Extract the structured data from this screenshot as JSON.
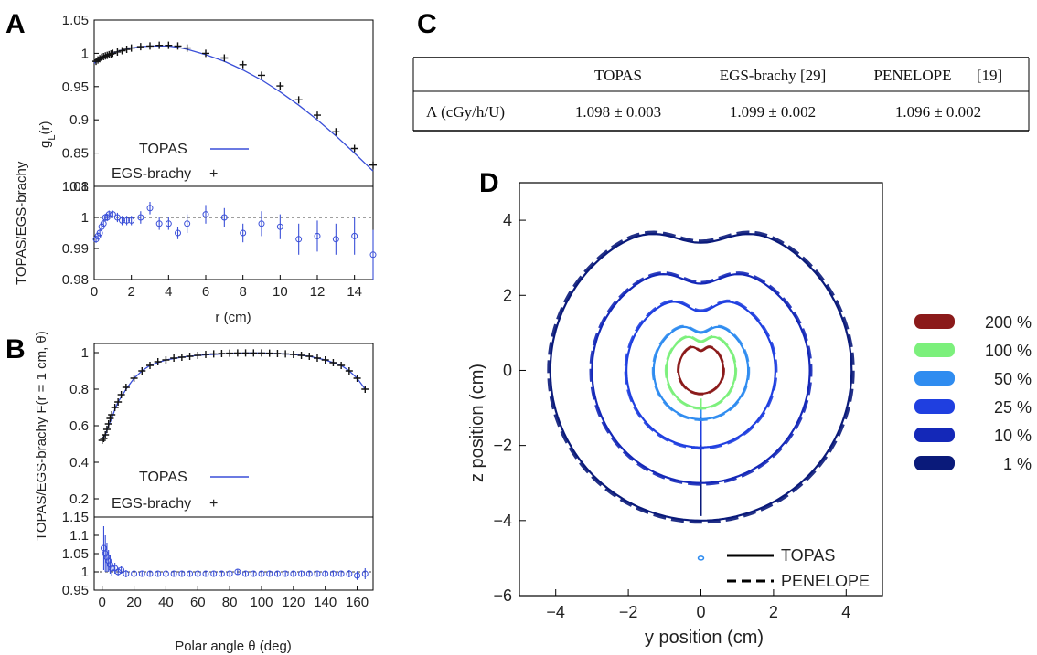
{
  "panels": {
    "A": "A",
    "B": "B",
    "C": "C",
    "D": "D"
  },
  "legend_common": {
    "topas": "TOPAS",
    "egs": "EGS-brachy",
    "penelope": "PENELOPE"
  },
  "table": {
    "headers": [
      "",
      "TOPAS",
      "EGS-brachy [29]",
      "PENELOPE",
      "[19]"
    ],
    "row_label": "Λ (cGy/h/U)",
    "values": [
      "1.098 ± 0.003",
      "1.099 ± 0.002",
      "1.096 ± 0.002"
    ]
  },
  "chart_data": [
    {
      "id": "A-top",
      "type": "line",
      "xlabel": "",
      "ylabel": "gL(r)",
      "ylabel_main": "g",
      "ylabel_sub": "L",
      "ylabel_tail": "(r)",
      "xlim": [
        0,
        15
      ],
      "ylim": [
        0.8,
        1.05
      ],
      "yticks": [
        "1.05",
        "1",
        "0.95",
        "0.9",
        "0.85",
        "0.8"
      ],
      "series": [
        {
          "name": "TOPAS",
          "kind": "line",
          "color": "#3a4fd8",
          "x": [
            0,
            0.25,
            0.5,
            0.75,
            1,
            1.5,
            2,
            2.5,
            3,
            3.5,
            4,
            4.5,
            5,
            6,
            7,
            8,
            9,
            10,
            11,
            12,
            13,
            14,
            15
          ],
          "values": [
            0.985,
            0.99,
            0.995,
            0.998,
            1.0,
            1.005,
            1.008,
            1.01,
            1.011,
            1.011,
            1.011,
            1.009,
            1.006,
            0.998,
            0.988,
            0.975,
            0.96,
            0.942,
            0.922,
            0.9,
            0.876,
            0.85,
            0.823
          ]
        },
        {
          "name": "EGS-brachy",
          "kind": "marker",
          "color": "#111111",
          "x": [
            0.1,
            0.2,
            0.3,
            0.4,
            0.5,
            0.6,
            0.7,
            0.8,
            0.9,
            1,
            1.25,
            1.5,
            1.75,
            2,
            2.5,
            3,
            3.5,
            4,
            4.5,
            5,
            6,
            7,
            8,
            9,
            10,
            11,
            12,
            13,
            14,
            15
          ],
          "values": [
            0.988,
            0.99,
            0.992,
            0.994,
            0.995,
            0.996,
            0.997,
            0.998,
            0.999,
            1.0,
            1.002,
            1.004,
            1.006,
            1.008,
            1.01,
            1.011,
            1.012,
            1.012,
            1.011,
            1.008,
            1.0,
            0.993,
            0.983,
            0.967,
            0.951,
            0.93,
            0.907,
            0.882,
            0.857,
            0.832
          ]
        }
      ]
    },
    {
      "id": "A-bottom",
      "type": "scatter",
      "xlabel": "r (cm)",
      "ylabel": "TOPAS/EGS-brachy",
      "xlim": [
        0,
        15
      ],
      "ylim": [
        0.98,
        1.01
      ],
      "xticks": [
        "0",
        "2",
        "4",
        "6",
        "8",
        "10",
        "12",
        "14"
      ],
      "yticks": [
        "1.01",
        "1",
        "0.99",
        "0.98"
      ],
      "reference": 1.0,
      "series": [
        {
          "name": "ratio",
          "color": "#3a4fd8",
          "x": [
            0.1,
            0.2,
            0.3,
            0.4,
            0.5,
            0.6,
            0.7,
            0.8,
            1.0,
            1.25,
            1.5,
            1.75,
            2,
            2.5,
            3,
            3.5,
            4,
            4.5,
            5,
            6,
            7,
            8,
            9,
            10,
            11,
            12,
            13,
            14,
            15
          ],
          "values": [
            0.993,
            0.994,
            0.995,
            0.997,
            0.998,
            1.0,
            1.0,
            1.001,
            1.001,
            1.0,
            0.999,
            0.999,
            0.999,
            1.0,
            1.003,
            0.998,
            0.998,
            0.995,
            0.998,
            1.001,
            1.0,
            0.995,
            0.998,
            0.997,
            0.993,
            0.994,
            0.993,
            0.994,
            0.988
          ],
          "errors": [
            0.0012,
            0.0012,
            0.0012,
            0.0012,
            0.0012,
            0.0012,
            0.0012,
            0.0012,
            0.0012,
            0.0015,
            0.0015,
            0.0015,
            0.0015,
            0.002,
            0.002,
            0.002,
            0.002,
            0.002,
            0.003,
            0.003,
            0.003,
            0.003,
            0.004,
            0.004,
            0.005,
            0.005,
            0.005,
            0.006,
            0.008
          ]
        }
      ]
    },
    {
      "id": "B-top",
      "type": "line",
      "xlabel": "",
      "ylabel": "F(r = 1 cm, θ)",
      "xlim": [
        -5,
        170
      ],
      "ylim": [
        0.1,
        1.05
      ],
      "yticks": [
        "1",
        "0.8",
        "0.6",
        "0.4",
        "0.2"
      ],
      "series": [
        {
          "name": "TOPAS",
          "kind": "line",
          "color": "#3a4fd8",
          "x": [
            0,
            2,
            4,
            6,
            8,
            10,
            15,
            20,
            25,
            30,
            40,
            50,
            60,
            70,
            80,
            90,
            100,
            110,
            120,
            130,
            140,
            150,
            155,
            160,
            165
          ],
          "values": [
            0.53,
            0.55,
            0.6,
            0.64,
            0.69,
            0.73,
            0.8,
            0.86,
            0.9,
            0.93,
            0.96,
            0.975,
            0.985,
            0.99,
            0.995,
            0.998,
            0.998,
            0.995,
            0.99,
            0.98,
            0.96,
            0.93,
            0.9,
            0.86,
            0.8
          ]
        },
        {
          "name": "EGS-brachy",
          "kind": "marker",
          "color": "#111111",
          "x": [
            0,
            1,
            2,
            3,
            4,
            5,
            6,
            8,
            10,
            12,
            15,
            20,
            25,
            30,
            35,
            40,
            45,
            50,
            55,
            60,
            65,
            70,
            75,
            80,
            85,
            90,
            95,
            100,
            105,
            110,
            115,
            120,
            125,
            130,
            135,
            140,
            145,
            150,
            155,
            160,
            165
          ],
          "values": [
            0.52,
            0.53,
            0.55,
            0.58,
            0.61,
            0.64,
            0.66,
            0.7,
            0.73,
            0.77,
            0.81,
            0.86,
            0.9,
            0.93,
            0.95,
            0.96,
            0.97,
            0.975,
            0.98,
            0.985,
            0.99,
            0.993,
            0.995,
            0.997,
            0.998,
            0.998,
            0.998,
            0.998,
            0.997,
            0.995,
            0.993,
            0.99,
            0.985,
            0.98,
            0.97,
            0.96,
            0.945,
            0.93,
            0.9,
            0.86,
            0.8
          ]
        }
      ]
    },
    {
      "id": "B-bottom",
      "type": "scatter",
      "xlabel": "Polar angle θ (deg)",
      "ylabel": "TOPAS/EGS-brachy",
      "xlim": [
        -5,
        170
      ],
      "ylim": [
        0.95,
        1.15
      ],
      "xticks": [
        "0",
        "20",
        "40",
        "60",
        "80",
        "100",
        "120",
        "140",
        "160"
      ],
      "yticks": [
        "1.15",
        "1.1",
        "1.05",
        "1",
        "0.95"
      ],
      "reference": 1.0,
      "series": [
        {
          "name": "ratio",
          "color": "#3a4fd8",
          "x": [
            1,
            2,
            3,
            4,
            5,
            6,
            8,
            10,
            12,
            15,
            20,
            25,
            30,
            35,
            40,
            45,
            50,
            55,
            60,
            65,
            70,
            75,
            80,
            85,
            90,
            95,
            100,
            105,
            110,
            115,
            120,
            125,
            130,
            135,
            140,
            145,
            150,
            155,
            160,
            165
          ],
          "values": [
            1.065,
            1.05,
            1.04,
            1.03,
            1.02,
            1.01,
            1.01,
            1.0,
            1.005,
            0.995,
            0.995,
            0.995,
            0.995,
            0.995,
            0.995,
            0.995,
            0.995,
            0.995,
            0.995,
            0.995,
            0.995,
            0.995,
            0.995,
            1.0,
            0.995,
            0.995,
            0.995,
            0.995,
            0.995,
            0.995,
            0.995,
            0.995,
            0.995,
            0.995,
            0.995,
            0.995,
            0.995,
            0.995,
            0.99,
            0.995
          ],
          "errors": [
            0.06,
            0.05,
            0.04,
            0.03,
            0.025,
            0.02,
            0.015,
            0.012,
            0.01,
            0.01,
            0.008,
            0.008,
            0.008,
            0.008,
            0.008,
            0.008,
            0.008,
            0.008,
            0.008,
            0.008,
            0.008,
            0.008,
            0.008,
            0.008,
            0.008,
            0.008,
            0.008,
            0.008,
            0.008,
            0.008,
            0.008,
            0.008,
            0.008,
            0.008,
            0.008,
            0.008,
            0.008,
            0.01,
            0.012,
            0.015
          ]
        }
      ]
    },
    {
      "id": "D",
      "type": "line",
      "xlabel": "y position (cm)",
      "ylabel": "z position (cm)",
      "xlim": [
        -5,
        5
      ],
      "ylim": [
        -6,
        5
      ],
      "xticks": [
        -4,
        -2,
        0,
        2,
        4
      ],
      "xtick_labels": [
        "−4",
        "−2",
        "0",
        "2",
        "4"
      ],
      "yticks": [
        4,
        2,
        0,
        -2,
        -4,
        -6
      ],
      "ytick_labels": [
        "4",
        "2",
        "0",
        "−2",
        "−4",
        "−6"
      ],
      "contour_legend": [
        {
          "label": "200 %",
          "color": "#8b1a1a"
        },
        {
          "label": "100 %",
          "color": "#7cf07c"
        },
        {
          "label": "50 %",
          "color": "#2f8cf0"
        },
        {
          "label": "25 %",
          "color": "#1f3fe0"
        },
        {
          "label": "10 %",
          "color": "#1428b8"
        },
        {
          "label": "1 %",
          "color": "#0a1a7a"
        }
      ],
      "contours": [
        {
          "level": "1 %",
          "color": "#0a1a7a",
          "xr": 4.15,
          "ztop": 4.0,
          "zbot": -4.0,
          "dip": 0.5
        },
        {
          "level": "10 %",
          "color": "#1428b8",
          "xr": 3.0,
          "ztop": 2.85,
          "zbot": -3.0,
          "dip": 0.45
        },
        {
          "level": "25 %",
          "color": "#1f3fe0",
          "xr": 2.05,
          "ztop": 2.05,
          "zbot": -2.05,
          "dip": 0.4
        },
        {
          "level": "50 %",
          "color": "#2f8cf0",
          "xr": 1.3,
          "ztop": 1.3,
          "zbot": -1.3,
          "dip": 0.25
        },
        {
          "level": "100 %",
          "color": "#7cf07c",
          "xr": 0.95,
          "ztop": 1.0,
          "zbot": -1.0,
          "dip": 0.2
        },
        {
          "level": "200 %",
          "color": "#8b1a1a",
          "xr": 0.62,
          "ztop": 0.7,
          "zbot": -0.62,
          "dip": 0.15
        }
      ]
    }
  ]
}
